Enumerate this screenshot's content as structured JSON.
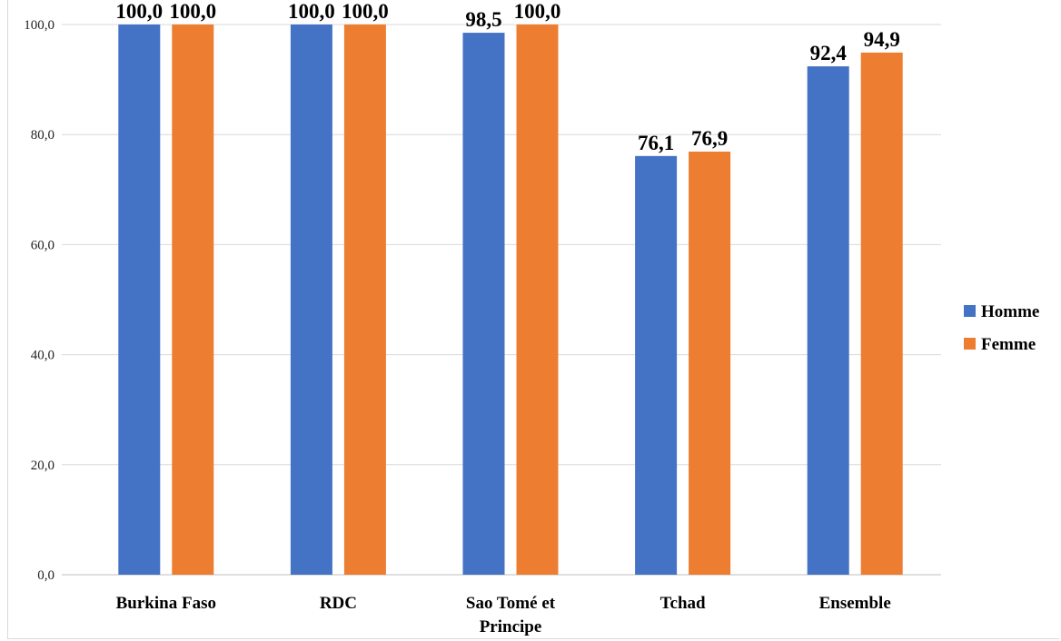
{
  "chart_data": {
    "type": "bar",
    "categories": [
      "Burkina Faso",
      "RDC",
      "Sao Tomé et Principe",
      "Tchad",
      "Ensemble"
    ],
    "category_lines": [
      [
        "Burkina Faso"
      ],
      [
        "RDC"
      ],
      [
        "Sao Tomé et",
        "Principe"
      ],
      [
        "Tchad"
      ],
      [
        "Ensemble"
      ]
    ],
    "series": [
      {
        "name": "Homme",
        "color": "#4472C4",
        "values": [
          100.0,
          100.0,
          98.5,
          76.1,
          92.4
        ],
        "labels": [
          "100,0",
          "100,0",
          "98,5",
          "76,1",
          "92,4"
        ]
      },
      {
        "name": "Femme",
        "color": "#ED7D31",
        "values": [
          100.0,
          100.0,
          100.0,
          76.9,
          94.9
        ],
        "labels": [
          "100,0",
          "100,0",
          "100,0",
          "76,9",
          "94,9"
        ]
      }
    ],
    "ylim": [
      0,
      100
    ],
    "yticks": [
      0,
      20,
      40,
      60,
      80,
      100
    ],
    "ytick_labels": [
      "0,0",
      "20,0",
      "40,0",
      "60,0",
      "80,0",
      "100,0"
    ],
    "grid": true,
    "legend_position": "right"
  }
}
